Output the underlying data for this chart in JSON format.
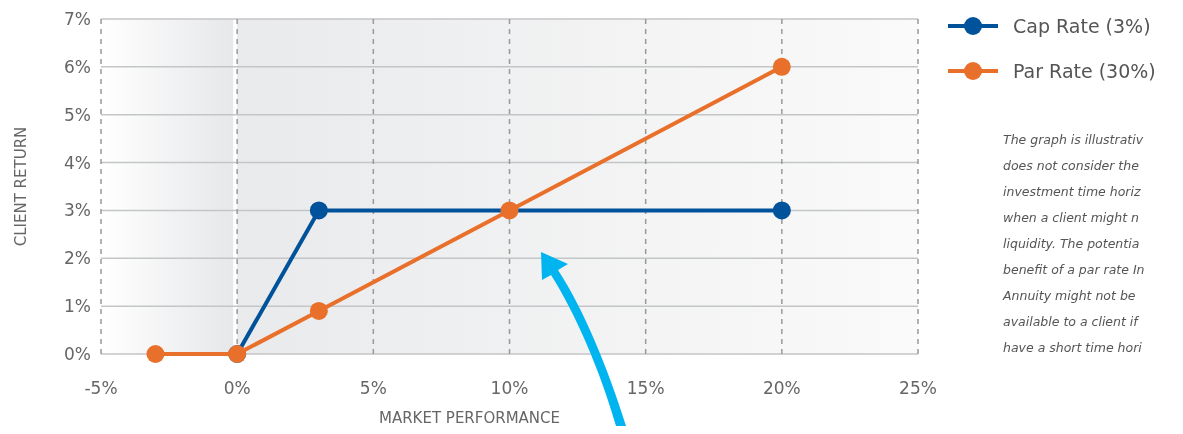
{
  "chart_data": {
    "type": "line",
    "xlabel": "MARKET PERFORMANCE",
    "ylabel": "CLIENT RETURN",
    "xlim": [
      -5,
      25
    ],
    "xticks": [
      {
        "value": -5,
        "label": "-5%"
      },
      {
        "value": 0,
        "label": "0%"
      },
      {
        "value": 5,
        "label": "5%"
      },
      {
        "value": 10,
        "label": "10%"
      },
      {
        "value": 15,
        "label": "15%"
      },
      {
        "value": 20,
        "label": "20%"
      },
      {
        "value": 25,
        "label": "25%"
      }
    ],
    "ylim": [
      0,
      7
    ],
    "yticks": [
      {
        "value": 0,
        "label": "0%"
      },
      {
        "value": 1,
        "label": "1%"
      },
      {
        "value": 2,
        "label": "2%"
      },
      {
        "value": 3,
        "label": "3%"
      },
      {
        "value": 4,
        "label": "4%"
      },
      {
        "value": 5,
        "label": "5%"
      },
      {
        "value": 6,
        "label": "6%"
      },
      {
        "value": 7,
        "label": "7%"
      }
    ],
    "bands": [
      {
        "axis": "x",
        "from": -5,
        "to": 0,
        "color": "#e6e7e9"
      }
    ],
    "ref_lines": [
      {
        "axis": "x",
        "value": 0,
        "color": "#ffffff"
      }
    ],
    "grid": true,
    "legend": "top right",
    "marker": "circle",
    "line_style": "solid",
    "series": [
      {
        "name": "Cap Rate (3%)",
        "color": "#00529b",
        "x": [
          0,
          3,
          20
        ],
        "values": [
          0,
          3,
          3
        ]
      },
      {
        "name": "Par Rate (30%)",
        "color": "#e8702a",
        "x": [
          -3,
          0,
          3,
          10,
          20
        ],
        "values": [
          0,
          0,
          0.9,
          3,
          6
        ]
      }
    ],
    "annotations": [
      "The graph is illustrativ\ndoes not consider the\ninvestment time horiz\nwhen a client might n\nliquidity.  The potentia\nbenefit of a par rate In\nAnnuity might not be\navailable to a client if\nhave a short time hori"
    ]
  }
}
